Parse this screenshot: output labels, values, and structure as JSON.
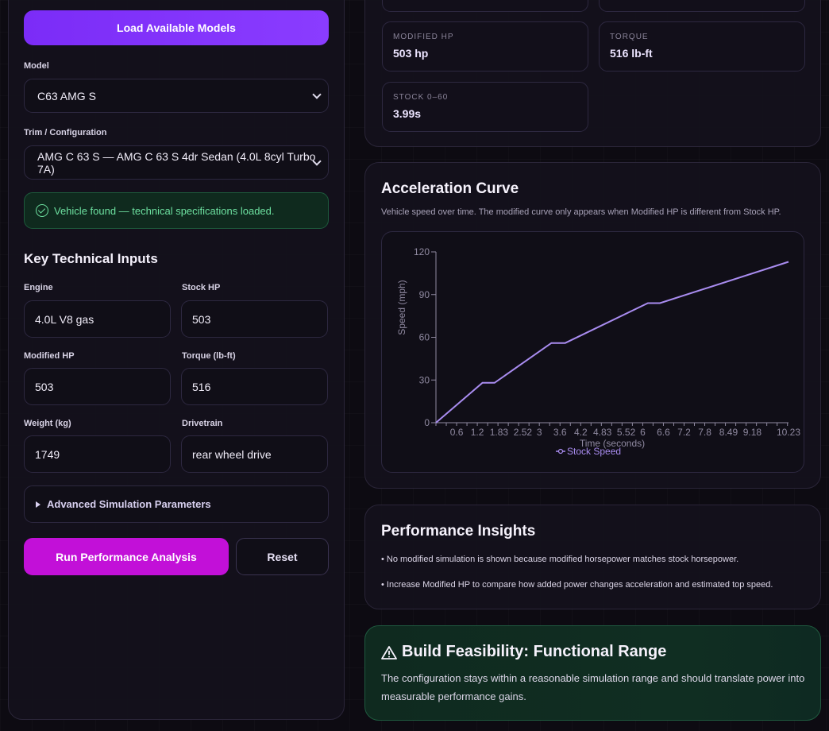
{
  "form": {
    "load_button": "Load Available Models",
    "model_label": "Model",
    "model_value": "C63 AMG S",
    "trim_label": "Trim / Configuration",
    "trim_value": "AMG C 63 S — AMG C 63 S 4dr Sedan (4.0L 8cyl Turbo 7A)",
    "found_message": "Vehicle found — technical specifications loaded.",
    "key_inputs_title": "Key Technical Inputs",
    "fields": [
      {
        "label": "Engine",
        "value": "4.0L V8 gas"
      },
      {
        "label": "Stock HP",
        "value": "503"
      },
      {
        "label": "Modified HP",
        "value": "503"
      },
      {
        "label": "Torque (lb-ft)",
        "value": "516"
      },
      {
        "label": "Weight (kg)",
        "value": "1749"
      },
      {
        "label": "Drivetrain",
        "value": "rear wheel drive"
      }
    ],
    "advanced_label": "Advanced Simulation Parameters",
    "run_button": "Run Performance Analysis",
    "reset_button": "Reset"
  },
  "specs": [
    {
      "key": "MODIFIED HP",
      "value": "503 hp"
    },
    {
      "key": "TORQUE",
      "value": "516 lb-ft"
    },
    {
      "key": "STOCK 0–60",
      "value": "3.99s"
    }
  ],
  "accel": {
    "title": "Acceleration Curve",
    "subtitle": "Vehicle speed over time. The modified curve only appears when Modified HP is different from Stock HP."
  },
  "chart_data": {
    "type": "line",
    "xlabel": "Time (seconds)",
    "ylabel": "Speed (mph)",
    "ylim": [
      0,
      120
    ],
    "xlim": [
      0,
      10.23
    ],
    "y_ticks": [
      0,
      30,
      60,
      90,
      120
    ],
    "x_ticks": [
      "0.6",
      "1.2",
      "1.83",
      "2.52",
      "3",
      "3.6",
      "4.2",
      "4.83",
      "5.52",
      "6",
      "6.6",
      "7.2",
      "7.8",
      "8.49",
      "9.18",
      "10.23"
    ],
    "x_tick_values": [
      0.6,
      1.2,
      1.83,
      2.52,
      3,
      3.6,
      4.2,
      4.83,
      5.52,
      6,
      6.6,
      7.2,
      7.8,
      8.49,
      9.18,
      10.23
    ],
    "series": [
      {
        "name": "Stock Speed",
        "color": "#a98cf0",
        "x": [
          0,
          1.35,
          1.7,
          3.35,
          3.75,
          6.15,
          6.5,
          10.23
        ],
        "y": [
          0,
          28,
          28,
          56,
          56,
          84,
          84,
          113
        ]
      }
    ],
    "legend": "bottom-center"
  },
  "insights": {
    "title": "Performance Insights",
    "items": [
      "• No modified simulation is shown because modified horsepower matches stock horsepower.",
      "• Increase Modified HP to compare how added power changes acceleration and estimated top speed."
    ]
  },
  "feasibility": {
    "title": "Build Feasibility: Functional Range",
    "body": "The configuration stays within a reasonable simulation range and should translate power into measurable performance gains."
  }
}
